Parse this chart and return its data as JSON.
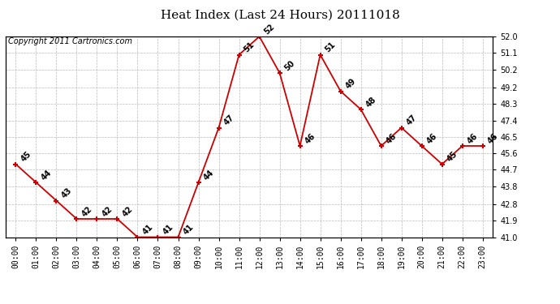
{
  "title": "Heat Index (Last 24 Hours) 20111018",
  "copyright": "Copyright 2011 Cartronics.com",
  "hours": [
    "00:00",
    "01:00",
    "02:00",
    "03:00",
    "04:00",
    "05:00",
    "06:00",
    "07:00",
    "08:00",
    "09:00",
    "10:00",
    "11:00",
    "12:00",
    "13:00",
    "14:00",
    "15:00",
    "16:00",
    "17:00",
    "18:00",
    "19:00",
    "20:00",
    "21:00",
    "22:00",
    "23:00"
  ],
  "values": [
    45,
    44,
    43,
    42,
    42,
    42,
    41,
    41,
    41,
    44,
    47,
    51,
    52,
    50,
    46,
    51,
    49,
    48,
    46,
    47,
    46,
    45,
    46,
    46
  ],
  "ylim": [
    41.0,
    52.0
  ],
  "yticks": [
    41.0,
    41.9,
    42.8,
    43.8,
    44.7,
    45.6,
    46.5,
    47.4,
    48.3,
    49.2,
    50.2,
    51.1,
    52.0
  ],
  "line_color": "#CC0000",
  "marker_color": "#CC0000",
  "bg_color": "#FFFFFF",
  "grid_color": "#BBBBBB",
  "title_fontsize": 11,
  "label_fontsize": 7,
  "copyright_fontsize": 7,
  "annotation_fontsize": 7
}
